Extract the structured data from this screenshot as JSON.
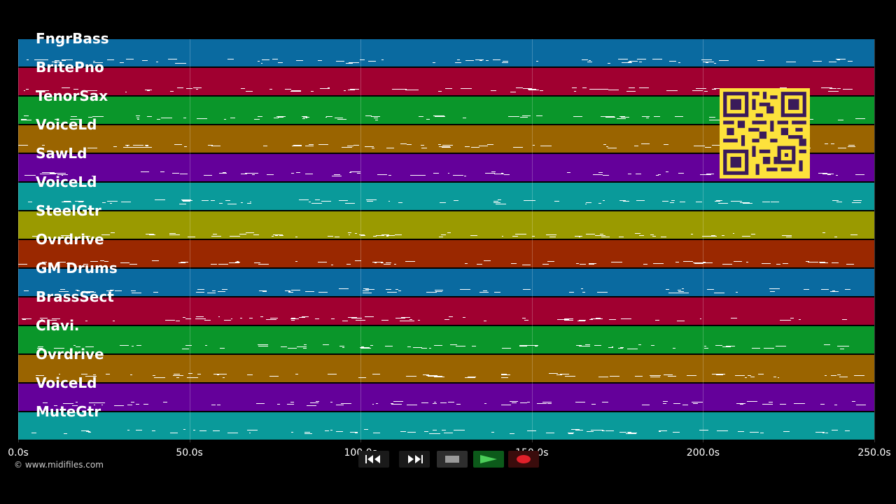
{
  "tracks": [
    {
      "label": "FngrBass",
      "color": "#0a6aa0"
    },
    {
      "label": "BritePno",
      "color": "#a00030"
    },
    {
      "label": "TenorSax",
      "color": "#0a962a"
    },
    {
      "label": "VoiceLd",
      "color": "#9a6400"
    },
    {
      "label": "SawLd",
      "color": "#64009a"
    },
    {
      "label": "VoiceLd",
      "color": "#0a9a9a"
    },
    {
      "label": "SteelGtr",
      "color": "#9a9a00"
    },
    {
      "label": "Ovrdrive",
      "color": "#9a2800"
    },
    {
      "label": "GM Drums",
      "color": "#0a6aa0"
    },
    {
      "label": "BrassSect",
      "color": "#a00030"
    },
    {
      "label": "Clavi.",
      "color": "#0a962a"
    },
    {
      "label": "Ovrdrive",
      "color": "#9a6400"
    },
    {
      "label": "VoiceLd",
      "color": "#64009a"
    },
    {
      "label": "MuteGtr",
      "color": "#0a9a9a"
    }
  ],
  "timeline": {
    "ticks": [
      "0.0s",
      "50.0s",
      "100.0s",
      "150.0s",
      "200.0s",
      "250.0s"
    ],
    "tick_seconds": [
      0,
      50,
      100,
      150,
      200,
      250
    ]
  },
  "credit": "© www.midifiles.com",
  "transport": {
    "rewind_icon": "rewind-icon",
    "fastforward_icon": "fast-forward-icon",
    "stop_icon": "stop-icon",
    "play_icon": "play-icon",
    "record_icon": "record-icon"
  },
  "qr_code": {
    "color": "#ffe000",
    "background": "#fde23c"
  }
}
